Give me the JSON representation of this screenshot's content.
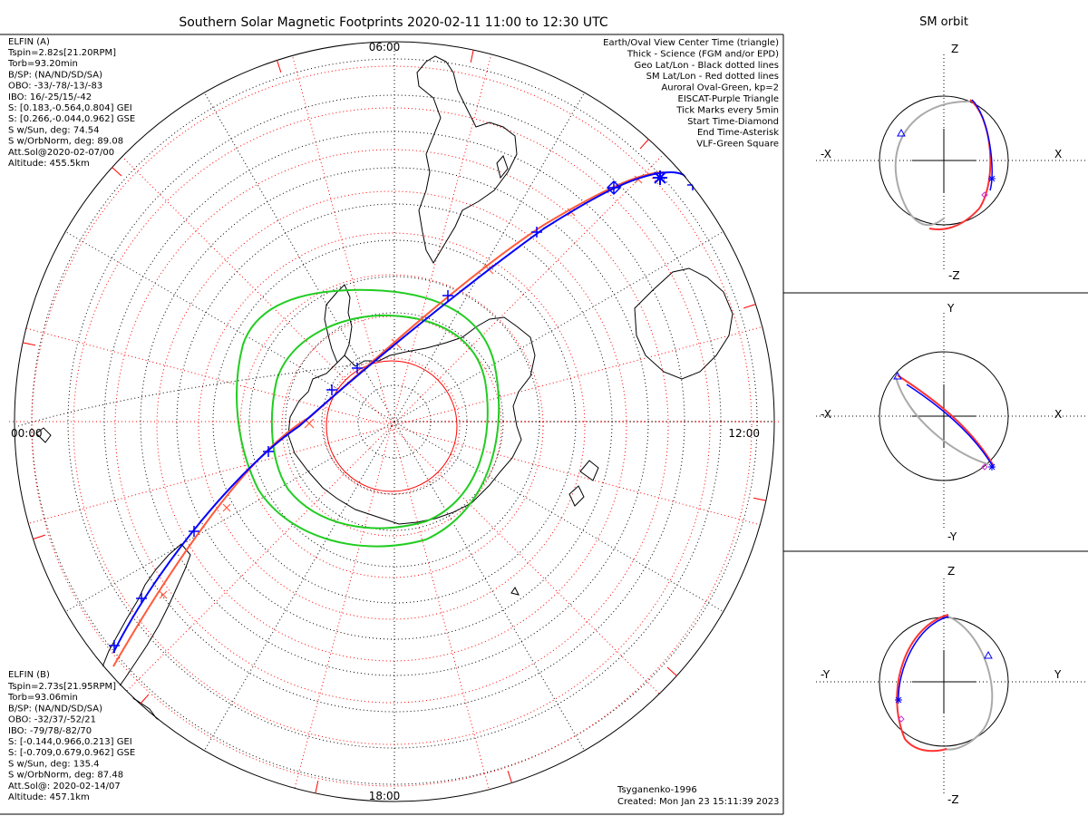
{
  "main_title": "Southern Solar Magnetic Footprints 2020-02-11 11:00 to 12:30 UTC",
  "orbit_title": "SM orbit",
  "hour_labels": {
    "top": "06:00",
    "left": "00:00",
    "right": "12:00",
    "bottom": "18:00"
  },
  "elfin_a": {
    "name": "ELFIN (A)",
    "color": "#0000ff",
    "lines": [
      "Tspin=2.82s[21.20RPM]",
      "Torb=93.20min",
      "B/SP: (NA/ND/SD/SA)",
      "OBO: -33/-78/-13/-83",
      "IBO: 16/-25/15/-42",
      "S: [0.183,-0.564,0.804] GEI",
      "S: [0.266,-0.044,0.962] GSE",
      "S w/Sun, deg: 74.54",
      "S w/OrbNorm, deg: 89.08",
      "Att.Sol@2020-02-07/00",
      "Altitude: 455.5km"
    ]
  },
  "elfin_b": {
    "name": "ELFIN (B)",
    "color": "#ff5a3c",
    "lines": [
      "Tspin=2.73s[21.95RPM]",
      "Torb=93.06min",
      "B/SP: (NA/ND/SD/SA)",
      "OBO: -32/37/-52/21",
      "IBO: -79/78/-82/70",
      "S: [-0.144,0.966,0.213] GEI",
      "S: [-0.709,0.679,0.962] GSE",
      "S w/Sun, deg: 135.4",
      "S w/OrbNorm, deg: 87.48",
      "Att.Sol@: 2020-02-14/07",
      "Altitude: 457.1km"
    ]
  },
  "legend": [
    {
      "text": "Earth/Oval View Center Time (triangle)",
      "color": "#000000"
    },
    {
      "text": "Thick - Science (FGM and/or EPD)",
      "color": "#000000"
    },
    {
      "text": "Geo Lat/Lon - Black dotted lines",
      "color": "#000000"
    },
    {
      "text": "SM Lat/Lon - Red dotted lines",
      "color": "#ff0000"
    },
    {
      "text": "Auroral Oval-Green, kp=2",
      "color": "#22cc22"
    },
    {
      "text": "EISCAT-Purple Triangle",
      "color": "#dd66dd"
    },
    {
      "text": "Tick Marks every 5min",
      "color": "#000000"
    },
    {
      "text": "Start Time-Diamond",
      "color": "#000000"
    },
    {
      "text": "End Time-Asterisk",
      "color": "#000000"
    },
    {
      "text": "VLF-Green Square",
      "color": "#22cc22"
    }
  ],
  "footer": {
    "model": "Tsyganenko-1996",
    "created": "Created: Mon Jan 23 15:11:39 2023"
  },
  "orbit_panels": [
    {
      "top": "Z",
      "bottom": "-Z",
      "left": "-X",
      "right": "X"
    },
    {
      "top": "Y",
      "bottom": "-Y",
      "left": "-X",
      "right": "X"
    },
    {
      "top": "Z",
      "bottom": "-Z",
      "left": "-Y",
      "right": "Y"
    }
  ]
}
